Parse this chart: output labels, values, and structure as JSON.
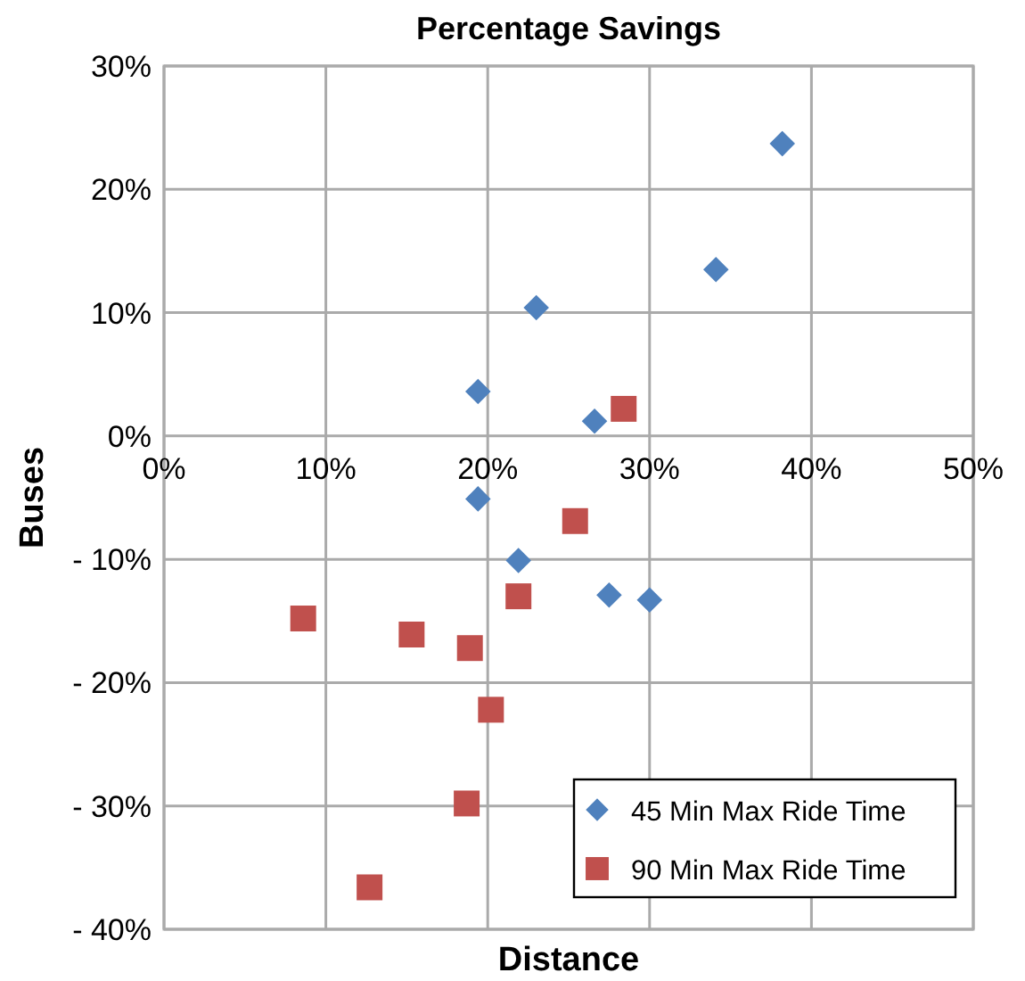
{
  "chart_data": {
    "type": "scatter",
    "title": "Percentage Savings",
    "xlabel": "Distance",
    "ylabel": "Buses",
    "xlim": [
      0,
      50
    ],
    "xticks": [
      {
        "value": 0,
        "label": "0%"
      },
      {
        "value": 10,
        "label": "10%"
      },
      {
        "value": 20,
        "label": "20%"
      },
      {
        "value": 30,
        "label": "30%"
      },
      {
        "value": 40,
        "label": "40%"
      },
      {
        "value": 50,
        "label": "50%"
      }
    ],
    "ylim": [
      -40,
      30
    ],
    "yticks": [
      {
        "value": -40,
        "label": "- 40%"
      },
      {
        "value": -30,
        "label": "- 30%"
      },
      {
        "value": -20,
        "label": "- 20%"
      },
      {
        "value": -10,
        "label": "- 10%"
      },
      {
        "value": 0,
        "label": "0%"
      },
      {
        "value": 10,
        "label": "10%"
      },
      {
        "value": 20,
        "label": "20%"
      },
      {
        "value": 30,
        "label": "30%"
      }
    ],
    "grid": true,
    "legend": "bottom right",
    "series": [
      {
        "name": "45 Min Max Ride Time",
        "color": "#4f81bd",
        "marker": "diamond",
        "x": [
          38.2,
          34.1,
          23.0,
          19.4,
          26.6,
          19.4,
          21.9,
          27.5,
          30.0
        ],
        "values": [
          23.7,
          13.5,
          10.4,
          3.6,
          1.2,
          -5.1,
          -10.1,
          -12.9,
          -13.3
        ]
      },
      {
        "name": "90 Min Max Ride Time",
        "color": "#c0504d",
        "marker": "square",
        "x": [
          28.4,
          25.4,
          21.9,
          8.6,
          15.3,
          18.9,
          20.2,
          18.7,
          12.7
        ],
        "values": [
          2.2,
          -6.9,
          -13.0,
          -14.8,
          -16.1,
          -17.2,
          -22.2,
          -29.8,
          -36.6
        ]
      }
    ]
  }
}
